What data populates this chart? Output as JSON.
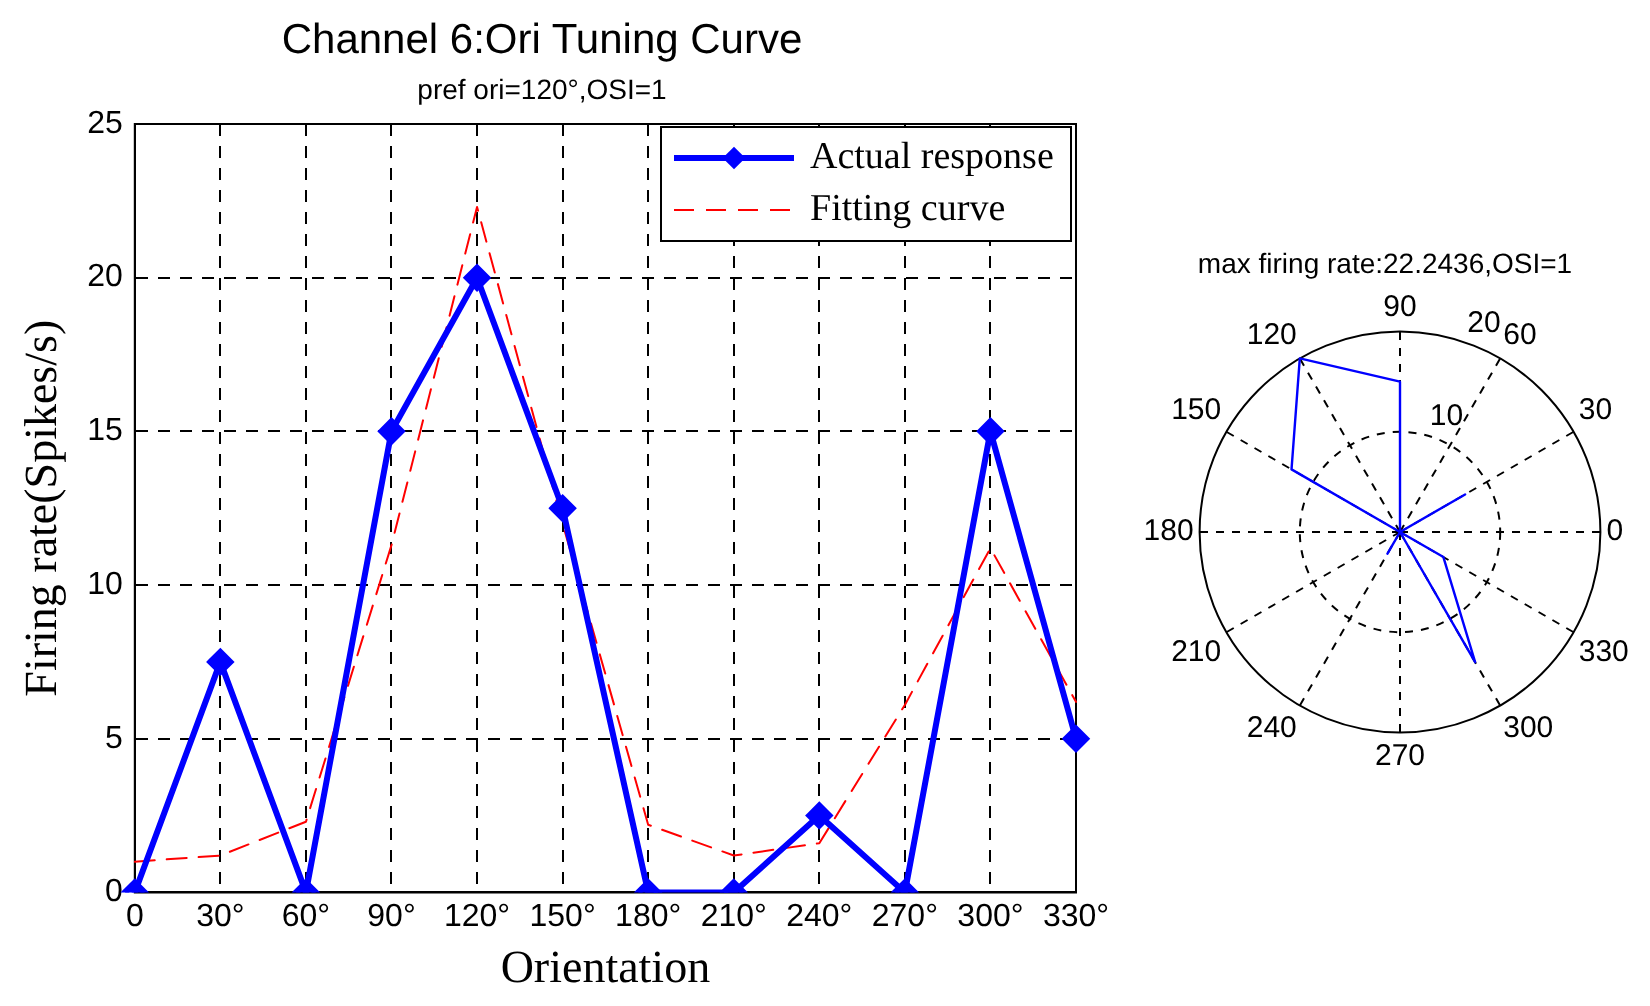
{
  "chart_data": [
    {
      "type": "line",
      "title": "Channel 6:Ori Tuning Curve",
      "subtitle": "pref ori=120°,OSI=1",
      "xlabel": "Orientation",
      "ylabel": "Firing rate(Spikes/s)",
      "categories": [
        "0",
        "30°",
        "60°",
        "90°",
        "120°",
        "150°",
        "180°",
        "210°",
        "240°",
        "270°",
        "300°",
        "330°"
      ],
      "series": [
        {
          "name": "Actual response",
          "color": "#0000ff",
          "marker": "diamond",
          "line_style": "solid",
          "values": [
            0,
            7.5,
            0,
            15,
            20,
            12.5,
            0,
            0,
            2.5,
            0,
            15,
            5
          ]
        },
        {
          "name": "Fitting curve",
          "color": "#ff0000",
          "marker": "none",
          "line_style": "dashed",
          "values": [
            1.0,
            1.2,
            2.3,
            11.3,
            22.3,
            12.0,
            2.2,
            1.2,
            1.6,
            6.1,
            11.2,
            6.2
          ]
        }
      ],
      "ylim": [
        0,
        25
      ],
      "yticks": [
        0,
        5,
        10,
        15,
        20,
        25
      ],
      "grid": true,
      "legend": "top right"
    },
    {
      "type": "radar",
      "title": "max firing rate:22.2436,OSI=1",
      "categories": [
        "90",
        "60",
        "30",
        "0",
        "330",
        "300",
        "270",
        "240",
        "210",
        "180",
        "150",
        "120"
      ],
      "series": [
        {
          "color": "#0000ff",
          "values": [
            15,
            0,
            7.5,
            0,
            5,
            15,
            0,
            2.5,
            0,
            0,
            12.5,
            20
          ]
        }
      ],
      "ylim": [
        0,
        20
      ],
      "yticks": [
        10,
        20
      ],
      "grid": true
    }
  ]
}
